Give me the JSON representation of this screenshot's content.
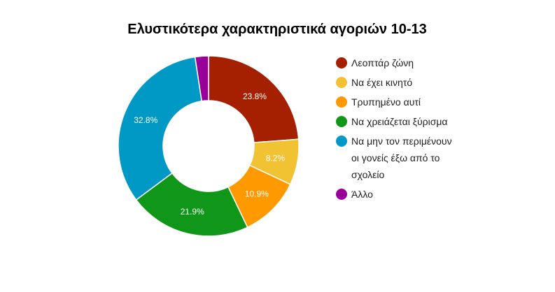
{
  "chart_data": {
    "type": "donut",
    "title": "Ελυστικότερα χαρακτηριστικά αγοριών 10-13",
    "categories": [
      "Λεοπτάρ ζώνη",
      "Να έχει κινητό",
      "Τρυπημένο αυτί",
      "Να χρειάζεται ξύρισμα",
      "Να μην τον περιμένουν οι γονείς έξω από το σχολείο",
      "Άλλο"
    ],
    "values": [
      23.8,
      8.2,
      10.9,
      21.9,
      32.8,
      2.4
    ],
    "value_labels": [
      "23.8%",
      "8.2%",
      "10.9%",
      "21.9%",
      "32.8%",
      null
    ],
    "colors": [
      "#a52000",
      "#f1c232",
      "#ff9900",
      "#109618",
      "#0099c6",
      "#990099"
    ],
    "legend": "right"
  }
}
